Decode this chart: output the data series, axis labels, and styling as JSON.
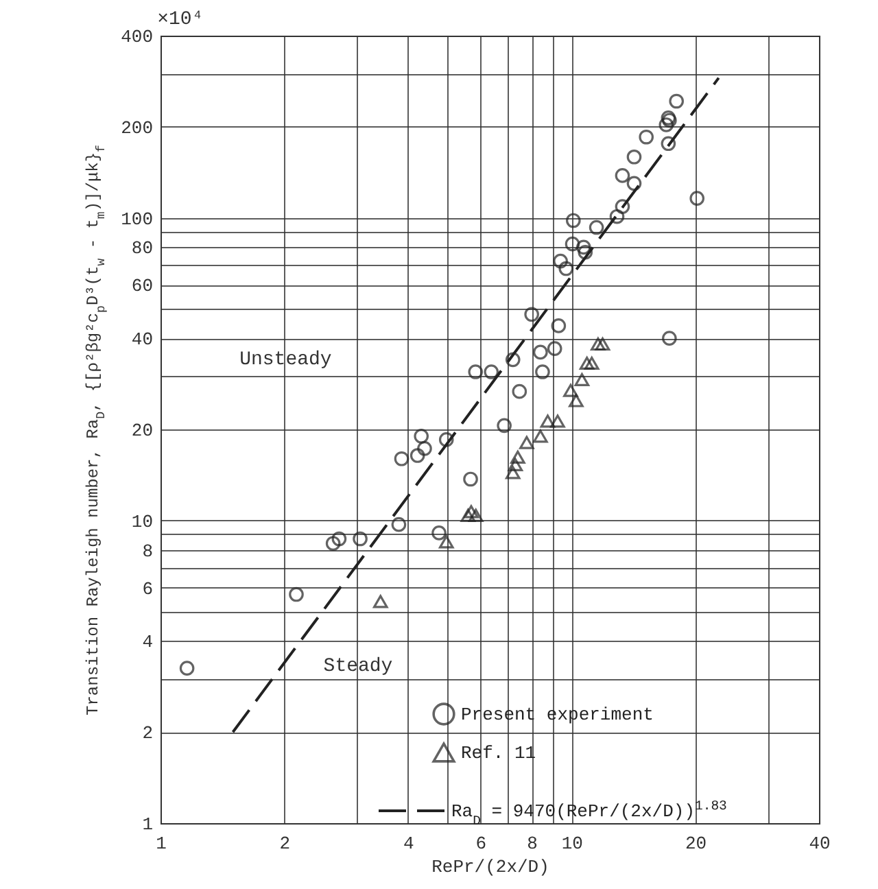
{
  "chart_data": {
    "type": "scatter",
    "xlabel": "RePr/(2x/D)",
    "ylabel": "Transition Rayleigh number, Ra$_{D}$, {[ρ²βg²c$_{p}$D³(t$_{w}$ - t$_{m}$)]/μk}$_{f}$",
    "log": "xy",
    "grid": true,
    "legend": "bottom right",
    "xlim": [
      1,
      40
    ],
    "ylim": [
      1,
      400
    ],
    "xticks": [
      1,
      2,
      {
        "value": 3,
        "label": null
      },
      4,
      {
        "value": 5,
        "label": null
      },
      6,
      {
        "value": 7,
        "label": null
      },
      8,
      {
        "value": 9,
        "label": null
      },
      10,
      20,
      {
        "value": 30,
        "label": null
      },
      40
    ],
    "yticks": [
      1,
      2,
      {
        "value": 3,
        "label": null
      },
      4,
      {
        "value": 5,
        "label": null
      },
      6,
      {
        "value": 7,
        "label": null
      },
      8,
      {
        "value": 9,
        "label": null
      },
      10,
      20,
      {
        "value": 30,
        "label": null
      },
      40,
      {
        "value": 50,
        "label": null
      },
      60,
      {
        "value": 70,
        "label": null
      },
      80,
      {
        "value": 90,
        "label": null
      },
      100,
      200,
      {
        "value": 300,
        "label": null
      },
      400
    ],
    "annotations": [
      "Unsteady",
      "Steady",
      "×10⁴"
    ],
    "series": [
      {
        "name": "Present experiment",
        "marker": "circle",
        "color": "#222222",
        "x": [
          1.16,
          2.14,
          2.63,
          2.72,
          3.06,
          3.8,
          3.86,
          4.22,
          4.31,
          4.39,
          4.96,
          4.76,
          5.68,
          5.84,
          6.38,
          7.2,
          6.86,
          7.47,
          8,
          8.4,
          8.5,
          9.1,
          9.3,
          17.3,
          9.4,
          9.7,
          10.05,
          10.1,
          10.7,
          10.8,
          11.5,
          12.9,
          13.3,
          14.2,
          13.3,
          14.2,
          15.2,
          17.2,
          17,
          17.3,
          17.2,
          18,
          20.2
        ],
        "values": [
          3.25,
          5.7,
          8.4,
          8.7,
          8.7,
          9.7,
          16,
          16.4,
          19,
          17.3,
          18.5,
          9.1,
          13.7,
          31,
          31,
          34,
          20.6,
          26.7,
          48,
          36,
          31,
          37,
          44,
          40,
          72,
          68,
          82,
          98,
          80,
          77,
          93,
          101,
          109,
          130,
          138,
          159,
          185,
          176,
          203,
          210,
          214,
          243,
          116
        ]
      },
      {
        "name": "Ref. 11",
        "marker": "triangle",
        "color": "#222222",
        "x": [
          3.43,
          4.96,
          5.6,
          5.7,
          5.85,
          7.2,
          7.3,
          7.4,
          7.78,
          8.4,
          8.75,
          9.25,
          9.95,
          10.26,
          10.6,
          10.9,
          11.2,
          11.6,
          11.9
        ],
        "values": [
          5.4,
          8.5,
          10.4,
          10.7,
          10.4,
          14.4,
          15.3,
          16.2,
          18.1,
          19,
          21.3,
          21.3,
          26.9,
          24.9,
          29.2,
          33.1,
          33.1,
          38.3,
          38.3
        ]
      },
      {
        "name": "Ra$_{D}$ = 9470(RePr/(2x/D))$^{1.83}$",
        "type": "line",
        "line_style": "dashed",
        "marker": "none",
        "color": "#222222",
        "x": [
          1.5,
          22.8
        ],
        "values": [
          2.0,
          290
        ]
      }
    ]
  }
}
